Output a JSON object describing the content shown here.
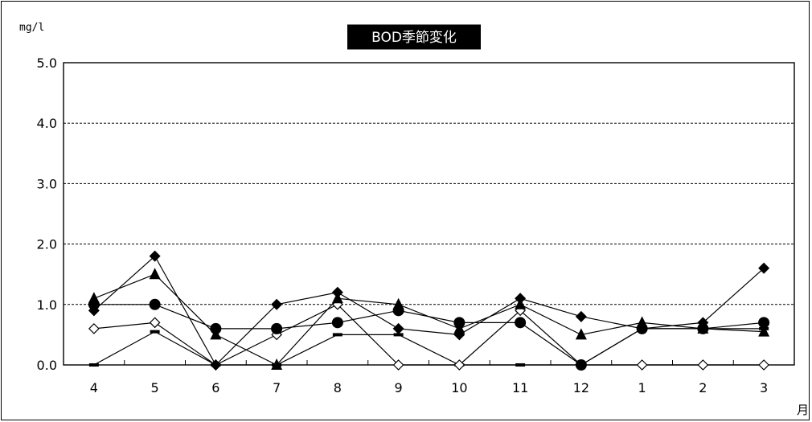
{
  "chart_data": {
    "type": "line",
    "title": "BOD季節変化",
    "ylabel": "mg/l",
    "xlabel": "月",
    "categories": [
      "4",
      "5",
      "6",
      "7",
      "8",
      "9",
      "10",
      "11",
      "12",
      "1",
      "2",
      "3"
    ],
    "ylim": [
      0,
      5.0
    ],
    "yticks": [
      "0.0",
      "1.0",
      "2.0",
      "3.0",
      "4.0",
      "5.0"
    ],
    "grid": true,
    "gridStyle": "dashed",
    "legend": "none",
    "series": [
      {
        "marker": "diamond-filled",
        "values": [
          0.9,
          1.8,
          0.0,
          1.0,
          1.2,
          0.6,
          0.5,
          1.1,
          0.8,
          0.6,
          0.7,
          1.6
        ]
      },
      {
        "marker": "triangle-filled",
        "values": [
          1.1,
          1.5,
          0.5,
          0.0,
          1.1,
          1.0,
          0.6,
          1.0,
          0.5,
          0.7,
          0.6,
          0.55
        ]
      },
      {
        "marker": "circle-filled",
        "values": [
          1.0,
          1.0,
          0.6,
          0.6,
          0.7,
          0.9,
          0.7,
          0.7,
          0.0,
          0.6,
          0.6,
          0.7
        ]
      },
      {
        "marker": "diamond-open",
        "values": [
          0.6,
          0.7,
          0.0,
          0.5,
          1.0,
          0.0,
          0.0,
          0.9,
          0.0,
          0.0,
          0.0,
          0.0
        ]
      },
      {
        "marker": "dash",
        "values": [
          0.0,
          0.55,
          0.0,
          0.0,
          0.5,
          0.5,
          0.0,
          0.0,
          0.0,
          0.6,
          0.6,
          0.6
        ]
      }
    ]
  }
}
